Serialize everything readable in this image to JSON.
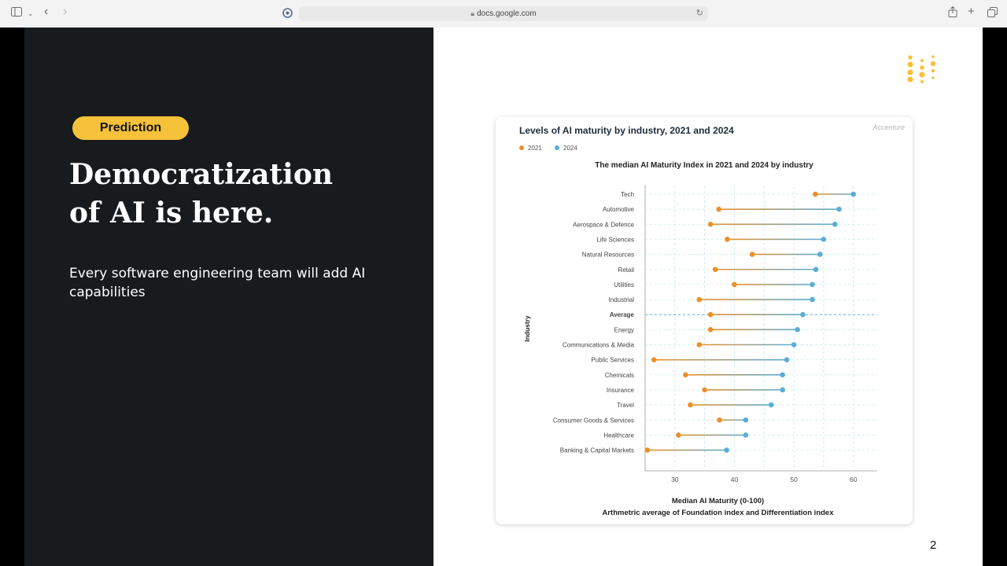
{
  "browser": {
    "url": "docs.google.com"
  },
  "slide": {
    "badge": "Prediction",
    "headline_line1": "Democratization",
    "headline_line2": "of AI is here.",
    "subtitle": "Every software engineering team will add AI capabilities",
    "page_number": "2",
    "accent_color": "#f5c23a"
  },
  "card": {
    "title": "Levels of AI maturity by industry, 2021 and 2024",
    "brand": "Accenture"
  },
  "chart_data": {
    "type": "scatter",
    "subtype": "dumbbell",
    "title": "The median AI Maturity Index in 2021 and 2024 by industry",
    "ylabel": "Industry",
    "xlabel": "Median AI Maturity (0-100)",
    "xlabel_line2": "Arthmetric average of Foundation index and Differentiation index",
    "xlim": [
      25,
      64
    ],
    "xticks": [
      30,
      40,
      50,
      60
    ],
    "grid": true,
    "legend_position": "top-left",
    "series": [
      {
        "name": "2021",
        "color": "#e8912a"
      },
      {
        "name": "2024",
        "color": "#5aaed6"
      }
    ],
    "categories": [
      "Tech",
      "Automotive",
      "Aerospace & Defence",
      "Life Sciences",
      "Natural Resources",
      "Retail",
      "Utilities",
      "Industrial",
      "Average",
      "Energy",
      "Communications & Media",
      "Public Services",
      "Chemicals",
      "Insurance",
      "Travel",
      "Consumer Goods & Services",
      "Healthcare",
      "Banking & Capital Markets"
    ],
    "values_2021": [
      53.6,
      37.4,
      36.0,
      38.8,
      43.0,
      36.8,
      40.0,
      34.1,
      36.0,
      36.0,
      34.1,
      26.5,
      31.8,
      35.0,
      32.6,
      37.5,
      30.6,
      25.4
    ],
    "values_2024": [
      60.0,
      57.6,
      56.9,
      55.0,
      54.4,
      53.7,
      53.1,
      53.1,
      51.5,
      50.6,
      50.0,
      48.8,
      48.1,
      48.1,
      46.2,
      41.9,
      41.9,
      38.7
    ],
    "highlight": "Average"
  }
}
